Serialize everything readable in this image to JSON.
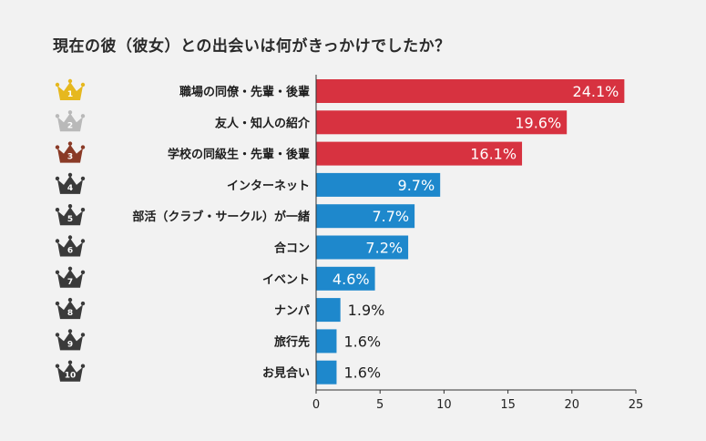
{
  "chart_data": {
    "type": "bar",
    "orientation": "horizontal",
    "title": "現在の彼（彼女）との出会いは何がきっかけでしたか？",
    "categories": [
      "職場の同僚・先輩・後輩",
      "友人・知人の紹介",
      "学校の同級生・先輩・後輩",
      "インターネット",
      "部活（クラブ・サークル）が一緒",
      "合コン",
      "イベント",
      "ナンパ",
      "旅行先",
      "お見合い"
    ],
    "values": [
      24.1,
      19.6,
      16.1,
      9.7,
      7.7,
      7.2,
      4.6,
      1.9,
      1.6,
      1.6
    ],
    "value_labels": [
      "24.1%",
      "19.6%",
      "16.1%",
      "9.7%",
      "7.7%",
      "7.2%",
      "4.6%",
      "1.9%",
      "1.6%",
      "1.6%"
    ],
    "ranks": [
      "1",
      "2",
      "3",
      "4",
      "5",
      "6",
      "7",
      "8",
      "9",
      "10"
    ],
    "xlim": [
      0,
      25
    ],
    "xticks": [
      "0",
      "5",
      "10",
      "15",
      "20",
      "25"
    ],
    "grid": false,
    "legend": "none",
    "colors": {
      "top3_bar": "#d73240",
      "other_bar": "#1e88cc",
      "crown_gold": "#e6b81e",
      "crown_silver": "#b9b9b9",
      "crown_bronze": "#8a3a26",
      "crown_other": "#3a3a3a",
      "background": "#f2f2f2"
    }
  }
}
